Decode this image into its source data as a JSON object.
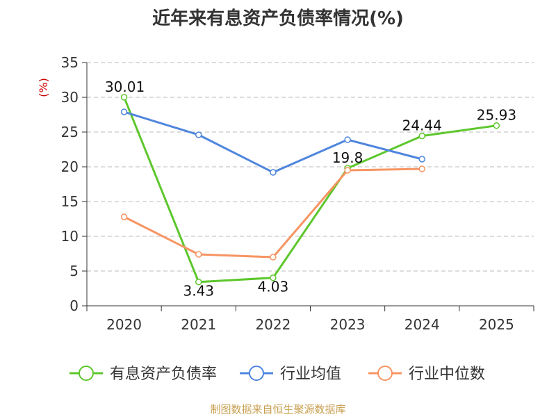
{
  "title": "近年来有息资产负债率情况(%)",
  "source": "制图数据来自恒生聚源数据库",
  "chart_data": {
    "type": "line",
    "title": "近年来有息资产负债率情况(%)",
    "ylabel": "(%)",
    "xlabel": "",
    "categories": [
      "2020",
      "2021",
      "2022",
      "2023",
      "2024",
      "2025"
    ],
    "ylim": [
      0,
      35
    ],
    "yticks": [
      "0",
      "5",
      "10",
      "15",
      "20",
      "25",
      "30",
      "35"
    ],
    "grid": true,
    "legend_position": "bottom",
    "series": [
      {
        "name": "有息资产负债率",
        "color": "#5dc72c",
        "values": [
          30.01,
          3.43,
          4.03,
          19.8,
          24.44,
          25.93
        ],
        "labels": [
          "30.01",
          "3.43",
          "4.03",
          "19.8",
          "24.44",
          "25.93"
        ]
      },
      {
        "name": "行业均值",
        "color": "#4f86de",
        "values": [
          27.9,
          24.6,
          19.2,
          23.9,
          21.1,
          null
        ]
      },
      {
        "name": "行业中位数",
        "color": "#f79462",
        "values": [
          12.8,
          7.4,
          7.0,
          19.5,
          19.7,
          null
        ]
      }
    ]
  }
}
